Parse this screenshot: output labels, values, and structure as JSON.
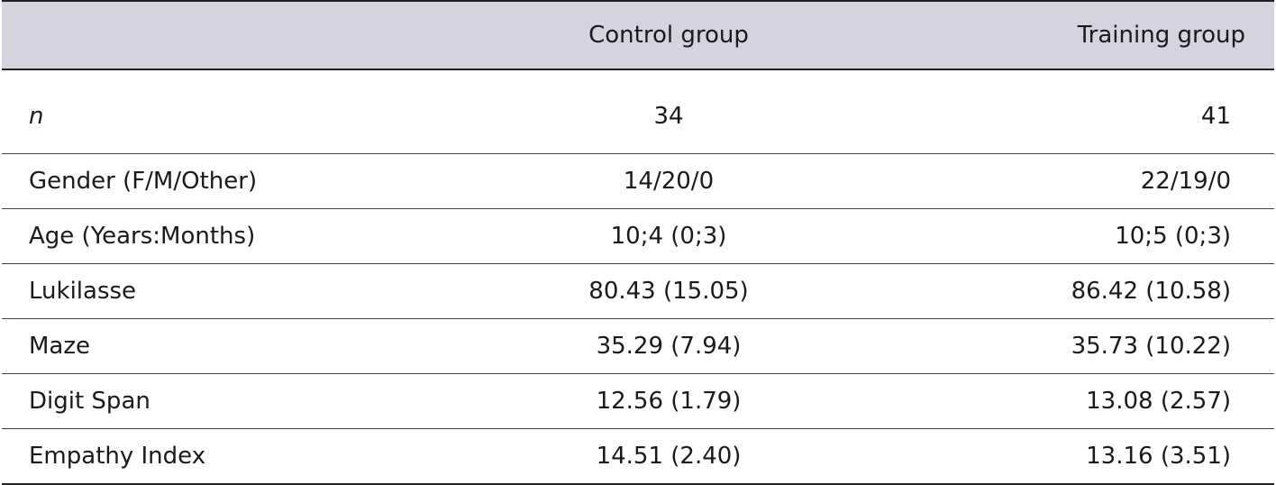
{
  "table": {
    "headers": [
      "",
      "Control group",
      "Training group"
    ],
    "rows": [
      {
        "label": "n",
        "control": "34",
        "training": "41"
      },
      {
        "label": "Gender (F/M/Other)",
        "control": "14/20/0",
        "training": "22/19/0"
      },
      {
        "label": "Age (Years:Months)",
        "control": "10;4 (0;3)",
        "training": "10;5 (0;3)"
      },
      {
        "label": "Lukilasse",
        "control": "80.43 (15.05)",
        "training": "86.42 (10.58)"
      },
      {
        "label": "Maze",
        "control": "35.29 (7.94)",
        "training": "35.73 (10.22)"
      },
      {
        "label": "Digit Span",
        "control": "12.56 (1.79)",
        "training": "13.08 (2.57)"
      },
      {
        "label": "Empathy Index",
        "control": "14.51 (2.40)",
        "training": "13.16 (3.51)"
      }
    ]
  },
  "colors": {
    "header_bg": "#d6d3e0",
    "rule": "#222222"
  }
}
